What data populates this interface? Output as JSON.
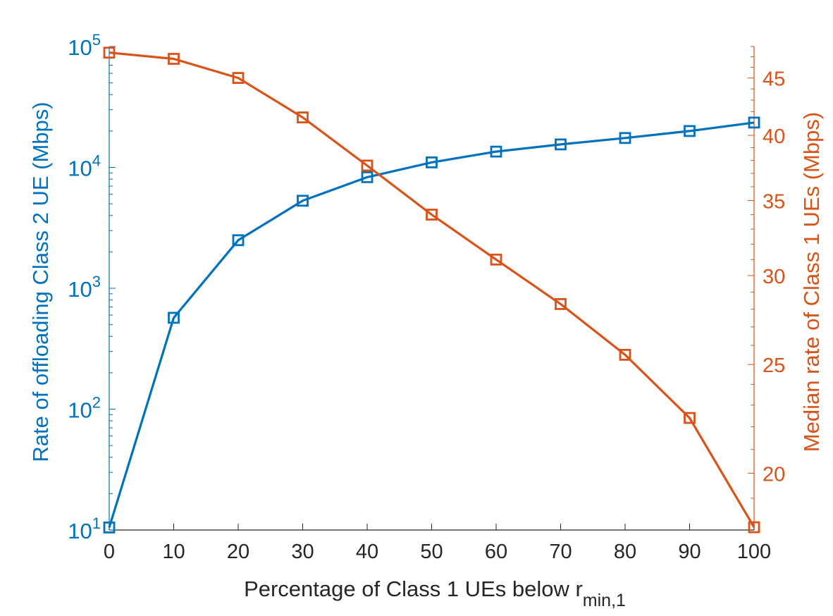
{
  "chart_data": {
    "type": "line",
    "xlabel": "Percentage of Class 1 UEs below r",
    "xlabel_subscript": "min,1",
    "x": [
      0,
      10,
      20,
      30,
      40,
      50,
      60,
      70,
      80,
      90,
      100
    ],
    "xlim": [
      0,
      100
    ],
    "xticks": [
      "0",
      "10",
      "20",
      "30",
      "40",
      "50",
      "60",
      "70",
      "80",
      "90",
      "100"
    ],
    "left_axis": {
      "label": "Rate of offloading Class 2 UE (Mbps)",
      "scale": "log",
      "ylim": [
        10,
        100000
      ],
      "color": "#0072BD",
      "ticks": [
        {
          "value": 10,
          "base": "10",
          "exp": "1"
        },
        {
          "value": 100,
          "base": "10",
          "exp": "2"
        },
        {
          "value": 1000,
          "base": "10",
          "exp": "3"
        },
        {
          "value": 10000,
          "base": "10",
          "exp": "4"
        },
        {
          "value": 100000,
          "base": "10",
          "exp": "5"
        }
      ]
    },
    "right_axis": {
      "label": "Median rate of Class 1 UEs (Mbps)",
      "scale": "log",
      "ylim": [
        17.8,
        48
      ],
      "color": "#D95319",
      "ticks": [
        "20",
        "25",
        "30",
        "35",
        "40",
        "45"
      ]
    },
    "series": [
      {
        "axis": "left",
        "color": "#0072BD",
        "marker": "square",
        "values": [
          10.5,
          570,
          2500,
          5300,
          8300,
          11000,
          13500,
          15500,
          17500,
          20000,
          23500
        ]
      },
      {
        "axis": "right",
        "color": "#D95319",
        "marker": "square",
        "values": [
          47.4,
          46.8,
          45.0,
          41.5,
          37.6,
          34.0,
          31.0,
          28.3,
          25.5,
          22.4,
          17.9
        ]
      }
    ],
    "grid": false,
    "legend": "none"
  }
}
